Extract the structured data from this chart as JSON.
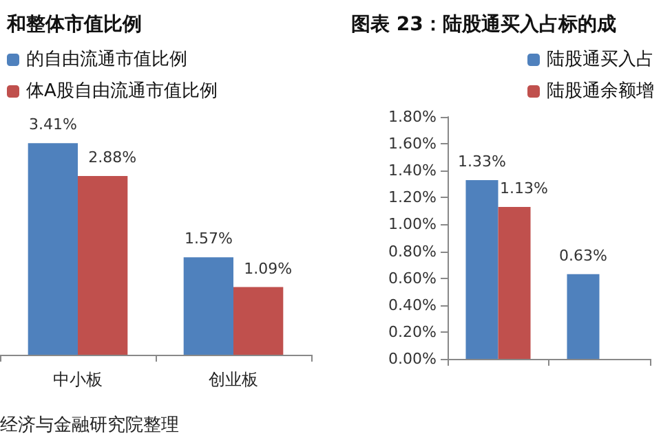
{
  "chart_data": [
    {
      "type": "bar",
      "title": "和整体市值比例",
      "categories": [
        "中小板",
        "创业板"
      ],
      "series": [
        {
          "name": "的自由流通市值比例",
          "color": "#4f81bd",
          "values": [
            3.41,
            1.57
          ],
          "value_labels": [
            "3.41%",
            "1.57%"
          ]
        },
        {
          "name": "体A股自由流通市值比例",
          "color": "#c0504d",
          "values": [
            2.88,
            1.09
          ],
          "value_labels": [
            "2.88%",
            "1.09%"
          ]
        }
      ],
      "tick_labels": "x",
      "legend": "top left",
      "grid": false,
      "annotations": [
        "经济与金融研究院整理"
      ]
    },
    {
      "type": "bar",
      "title": "图表 23：陆股通买入占标的成",
      "categories": [
        null,
        null
      ],
      "series": [
        {
          "name": "陆股通买入占",
          "color": "#4f81bd",
          "values": [
            1.33,
            0.63
          ],
          "value_labels": [
            "1.33%",
            "0.63%"
          ]
        },
        {
          "name": "陆股通余额增",
          "color": "#c0504d",
          "values": [
            1.13,
            null
          ],
          "value_labels": [
            "1.13%",
            null
          ]
        }
      ],
      "ylim": [
        0,
        1.8
      ],
      "yticks": [
        {
          "value": 0,
          "label": "0.00%"
        },
        {
          "value": 0.2,
          "label": "0.20%"
        },
        {
          "value": 0.4,
          "label": "0.40%"
        },
        {
          "value": 0.6,
          "label": "0.60%"
        },
        {
          "value": 0.8,
          "label": "0.80%"
        },
        {
          "value": 1.0,
          "label": "1.00%"
        },
        {
          "value": 1.2,
          "label": "1.20%"
        },
        {
          "value": 1.4,
          "label": "1.40%"
        },
        {
          "value": 1.6,
          "label": "1.60%"
        },
        {
          "value": 1.8,
          "label": "1.80%"
        }
      ],
      "legend": "top right",
      "grid": false
    }
  ]
}
